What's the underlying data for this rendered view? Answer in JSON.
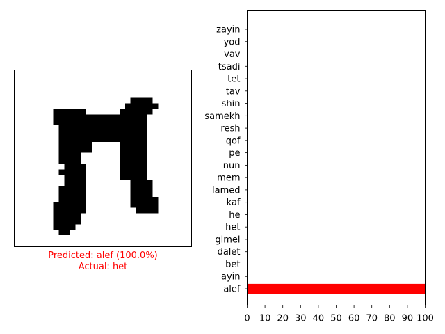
{
  "prediction": {
    "predicted_line": "Predicted: alef (100.0%)",
    "actual_line": "Actual: het"
  },
  "colors": {
    "highlight": "#ff0000"
  },
  "chart_data": {
    "type": "bar",
    "orientation": "horizontal",
    "categories": [
      "alef",
      "ayin",
      "bet",
      "dalet",
      "gimel",
      "het",
      "he",
      "kaf",
      "lamed",
      "mem",
      "nun",
      "pe",
      "qof",
      "resh",
      "samekh",
      "shin",
      "tav",
      "tet",
      "tsadi",
      "vav",
      "yod",
      "zayin"
    ],
    "values": [
      100,
      0,
      0,
      0,
      0,
      0,
      0,
      0,
      0,
      0,
      0,
      0,
      0,
      0,
      0,
      0,
      0,
      0,
      0,
      0,
      0,
      0
    ],
    "xlim": [
      0,
      100
    ],
    "xticks": [
      "0",
      "10",
      "20",
      "30",
      "40",
      "50",
      "60",
      "70",
      "80",
      "90",
      "100"
    ],
    "grid": false,
    "bar_color": "#ff0000"
  }
}
